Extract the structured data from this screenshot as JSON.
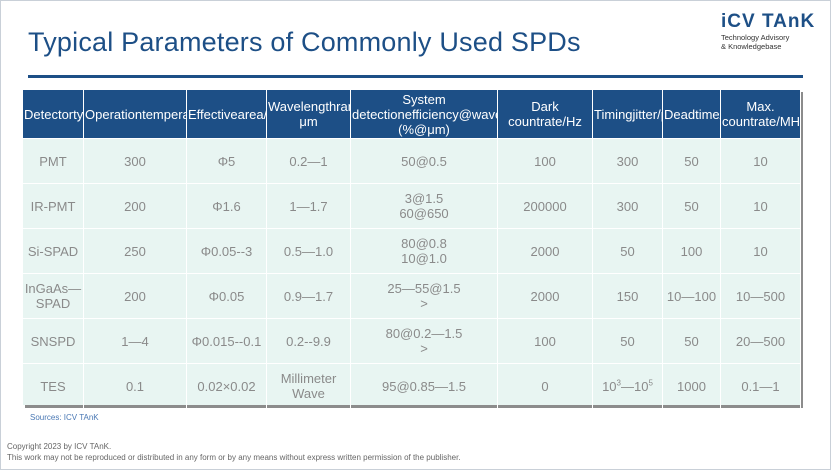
{
  "header": {
    "title": "Typical Parameters of Commonly Used SPDs",
    "logo_mark": "iCV TAnK",
    "logo_tagline_1": "Technology Advisory",
    "logo_tagline_2": "& Knowledgebase"
  },
  "table": {
    "columns": [
      {
        "line1": "Detector",
        "line2": "type"
      },
      {
        "line1": "Operation",
        "line2": "temperature/K"
      },
      {
        "line1": "Effective",
        "line2": "area/mm"
      },
      {
        "line1": "Wavelength",
        "line2": "range/μm"
      },
      {
        "line1": "System detection",
        "line2": "efficiency@",
        "line3": "wavelength/ (%@μm)"
      },
      {
        "line1": "Dark count",
        "line2": "rate/Hz"
      },
      {
        "line1": "Timing",
        "line2": "jitter/ps"
      },
      {
        "line1": "Dead",
        "line2": "time/ns"
      },
      {
        "line1": "Max. count",
        "line2": "rate/MHz"
      }
    ],
    "rows": [
      {
        "type": "PMT",
        "temp": "300",
        "area": "Φ5",
        "wavelength": "0.2—1",
        "eff_1": "50@0.5",
        "eff_2": "",
        "dark": "100",
        "jitter": "300",
        "dead": "50",
        "maxrate": "10"
      },
      {
        "type": "IR-PMT",
        "temp": "200",
        "area": "Φ1.6",
        "wavelength": "1—1.7",
        "eff_1": "3@1.5",
        "eff_2": "60@650",
        "dark": "200000",
        "jitter": "300",
        "dead": "50",
        "maxrate": "10"
      },
      {
        "type": "Si-SPAD",
        "temp": "250",
        "area": "Φ0.05--3",
        "wavelength": "0.5—1.0",
        "eff_1": "80@0.8",
        "eff_2": "10@1.0",
        "dark": "2000",
        "jitter": "50",
        "dead": "100",
        "maxrate": "10"
      },
      {
        "type_1": "InGaAs—",
        "type_2": "SPAD",
        "temp": "200",
        "area": "Φ0.05",
        "wavelength": "0.9—1.7",
        "eff_1": "25—55@1.5",
        "eff_2": ">",
        "dark": "2000",
        "jitter": "150",
        "dead": "10—100",
        "maxrate": "10—500"
      },
      {
        "type": "SNSPD",
        "temp": "1—4",
        "area": "Φ0.015--0.1",
        "wavelength": "0.2--9.9",
        "eff_1": "80@0.2—1.5",
        "eff_2": ">",
        "dark": "100",
        "jitter": "50",
        "dead": "50",
        "maxrate": "20—500"
      },
      {
        "type": "TES",
        "temp": "0.1",
        "area": "0.02×0.02",
        "wavelength_1": "Millimeter",
        "wavelength_2": "Wave",
        "eff_1": "95@0.85—1.5",
        "eff_2": "",
        "dark": "0",
        "jitter_base1": "10",
        "jitter_exp1": "3",
        "jitter_sep": "—",
        "jitter_base2": "10",
        "jitter_exp2": "5",
        "dead": "1000",
        "maxrate": "0.1—1"
      }
    ]
  },
  "footer": {
    "source": "Sources: ICV TAnK",
    "copyright_1": "Copyright 2023 by ICV TAnK.",
    "copyright_2": "This work may not be reproduced or distributed in any form or by any means without express written permission of the publisher."
  }
}
